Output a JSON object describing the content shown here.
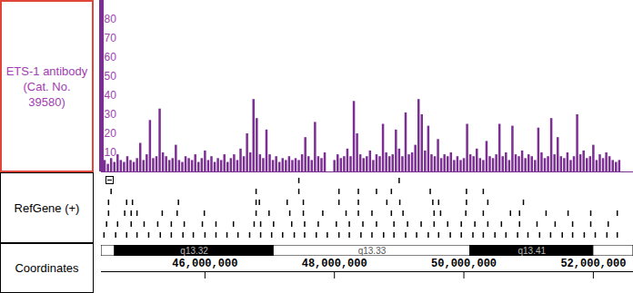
{
  "chart_data": {
    "type": "bar",
    "title": "ETS-1 antibody (Cat. No. 39580)",
    "color": "#7b2f92",
    "x": [
      44400000,
      44450000,
      44500000,
      44550000,
      44600000,
      44650000,
      44700000,
      44750000,
      44800000,
      44850000,
      44900000,
      44950000,
      45000000,
      45050000,
      45100000,
      45150000,
      45200000,
      45250000,
      45300000,
      45350000,
      45400000,
      45450000,
      45500000,
      45550000,
      45600000,
      45650000,
      45700000,
      45750000,
      45800000,
      45850000,
      45900000,
      45950000,
      46000000,
      46050000,
      46100000,
      46150000,
      46200000,
      46250000,
      46300000,
      46350000,
      46400000,
      46450000,
      46500000,
      46550000,
      46600000,
      46650000,
      46700000,
      46750000,
      46800000,
      46850000,
      46900000,
      46950000,
      47000000,
      47050000,
      47100000,
      47150000,
      47200000,
      47250000,
      47300000,
      47350000,
      47400000,
      47450000,
      47500000,
      47550000,
      47600000,
      47650000,
      47700000,
      47750000,
      47800000,
      47850000,
      47900000,
      47950000,
      48000000,
      48050000,
      48100000,
      48150000,
      48200000,
      48250000,
      48300000,
      48350000,
      48400000,
      48450000,
      48500000,
      48550000,
      48600000,
      48650000,
      48700000,
      48750000,
      48800000,
      48850000,
      48900000,
      48950000,
      49000000,
      49050000,
      49100000,
      49150000,
      49200000,
      49250000,
      49300000,
      49350000,
      49400000,
      49450000,
      49500000,
      49550000,
      49600000,
      49650000,
      49700000,
      49750000,
      49800000,
      49850000,
      49900000,
      49950000,
      50000000,
      50050000,
      50100000,
      50150000,
      50200000,
      50250000,
      50300000,
      50350000,
      50400000,
      50450000,
      50500000,
      50550000,
      50600000,
      50650000,
      50700000,
      50750000,
      50800000,
      50850000,
      50900000,
      50950000,
      51000000,
      51050000,
      51100000,
      51150000,
      51200000,
      51250000,
      51300000,
      51350000,
      51400000,
      51450000,
      51500000,
      51550000,
      51600000,
      51650000,
      51700000,
      51750000,
      51800000,
      51850000,
      51900000,
      51950000,
      52000000,
      52050000,
      52100000,
      52150000,
      52200000,
      52250000,
      52300000,
      52350000,
      52400000
    ],
    "values": [
      5,
      6,
      4,
      7,
      5,
      9,
      6,
      5,
      8,
      6,
      5,
      7,
      15,
      6,
      9,
      27,
      7,
      8,
      33,
      10,
      8,
      6,
      7,
      14,
      6,
      5,
      8,
      7,
      6,
      9,
      5,
      7,
      11,
      6,
      8,
      5,
      7,
      6,
      9,
      5,
      7,
      9,
      6,
      12,
      8,
      20,
      10,
      38,
      28,
      9,
      7,
      22,
      9,
      6,
      8,
      5,
      7,
      6,
      8,
      6,
      7,
      6,
      9,
      18,
      8,
      6,
      26,
      8,
      7,
      10,
      null,
      null,
      6,
      9,
      7,
      8,
      12,
      8,
      37,
      20,
      9,
      7,
      8,
      11,
      6,
      9,
      8,
      25,
      10,
      8,
      9,
      22,
      12,
      8,
      31,
      9,
      10,
      14,
      38,
      30,
      11,
      24,
      9,
      8,
      17,
      7,
      9,
      8,
      10,
      6,
      8,
      6,
      7,
      25,
      9,
      8,
      12,
      7,
      6,
      16,
      8,
      7,
      9,
      25,
      8,
      10,
      6,
      24,
      9,
      8,
      11,
      7,
      9,
      8,
      6,
      23,
      10,
      7,
      8,
      28,
      9,
      18,
      8,
      7,
      10,
      6,
      8,
      30,
      9,
      11,
      7,
      8,
      14,
      6,
      9,
      7,
      10,
      8,
      6,
      5,
      6
    ],
    "xlim": [
      44400000,
      52620000
    ],
    "xticks": [
      {
        "value": 46000000,
        "label": "46,000,000"
      },
      {
        "value": 48000000,
        "label": "48,000,000"
      },
      {
        "value": 50000000,
        "label": "50,000,000"
      },
      {
        "value": 52000000,
        "label": "52,000,000"
      }
    ],
    "ylim": [
      0,
      90
    ],
    "yticks": [
      10,
      20,
      30,
      40,
      50,
      60,
      70,
      80
    ],
    "gene_track": {
      "label": "RefGene (+)",
      "rows": [
        [
          47450000,
          49000000
        ],
        [
          44550000,
          46790000,
          47450000,
          48070000,
          48370000,
          48650000,
          48880000,
          49480000,
          50040000,
          50300000
        ],
        [
          44510000,
          44790000,
          44880000,
          45590000,
          46790000,
          46840000,
          47270000,
          47520000,
          48070000,
          48370000,
          48810000,
          49010000,
          49520000,
          49610000,
          50040000,
          50370000,
          50920000
        ],
        [
          44510000,
          44760000,
          44860000,
          44950000,
          45340000,
          45570000,
          45990000,
          46790000,
          46990000,
          47310000,
          47520000,
          47820000,
          48180000,
          48370000,
          48580000,
          48880000,
          49060000,
          49540000,
          49640000,
          50030000,
          50300000,
          50720000,
          50860000,
          51270000,
          51610000,
          51960000,
          52370000
        ],
        [
          44480000,
          44650000,
          44860000,
          45060000,
          45270000,
          45480000,
          45680000,
          45960000,
          46170000,
          46440000,
          46760000,
          46860000,
          47060000,
          47340000,
          47540000,
          47750000,
          48030000,
          48230000,
          48440000,
          48650000,
          48920000,
          49130000,
          49340000,
          49540000,
          49750000,
          49960000,
          50170000,
          50370000,
          50580000,
          50860000,
          51130000,
          51410000,
          51680000,
          51960000,
          52230000
        ],
        [
          44440000,
          44620000,
          44790000,
          44950000,
          45130000,
          45310000,
          45480000,
          45660000,
          45820000,
          46000000,
          46170000,
          46340000,
          46510000,
          46690000,
          46860000,
          47030000,
          47200000,
          47380000,
          47540000,
          47720000,
          47890000,
          48070000,
          48230000,
          48410000,
          48580000,
          48760000,
          48920000,
          49100000,
          49270000,
          49450000,
          49610000,
          49790000,
          49960000,
          50140000,
          50300000,
          50480000,
          50650000,
          50830000,
          50990000,
          51170000,
          51340000,
          51520000,
          51680000,
          51860000,
          52030000,
          52210000,
          52370000
        ]
      ]
    },
    "coordinates": {
      "label": "Coordinates",
      "bands": [
        {
          "start": 44400000,
          "end": 44610000,
          "name": null,
          "color": "#ffffff"
        },
        {
          "start": 44610000,
          "end": 47060000,
          "name": "q13.32",
          "color": "#000000"
        },
        {
          "start": 47060000,
          "end": 50100000,
          "name": "q13.33",
          "color": "#ffffff"
        },
        {
          "start": 50100000,
          "end": 52000000,
          "name": "q13.41",
          "color": "#000000"
        },
        {
          "start": 52000000,
          "end": 52620000,
          "name": null,
          "color": "#ffffff"
        }
      ]
    }
  }
}
